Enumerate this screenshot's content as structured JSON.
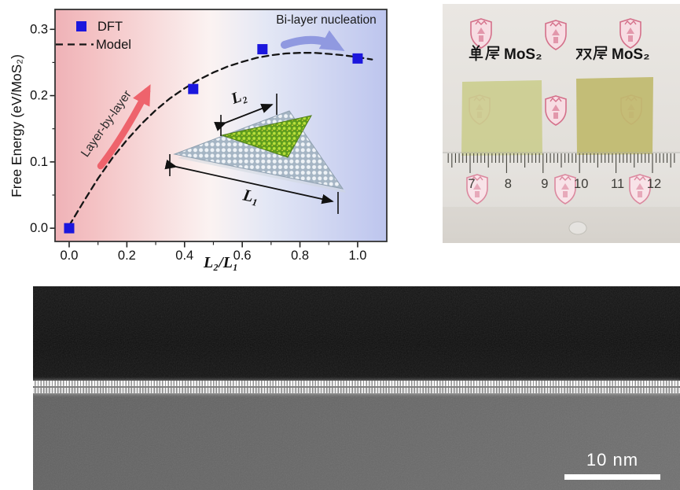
{
  "chart_data": {
    "type": "scatter",
    "title": "",
    "xlabel": "L₂/L₁",
    "ylabel": "Free Energy (eV/MoS₂)",
    "xlim": [
      -0.049,
      1.101
    ],
    "ylim": [
      -0.02,
      0.33
    ],
    "x_ticks": [
      0.0,
      0.2,
      0.4,
      0.6,
      0.8,
      1.0
    ],
    "x_minor_ticks": [
      0.1,
      0.3,
      0.5,
      0.7,
      0.9
    ],
    "y_ticks": [
      0.0,
      0.1,
      0.2,
      0.3
    ],
    "y_minor_ticks": [
      0.05,
      0.15,
      0.25
    ],
    "grid": false,
    "legend_position": "top-left",
    "background_gradient": [
      "#efb2b7",
      "#f4c2c4",
      "#fbf3f2",
      "#e3e7f5",
      "#bdc5ee"
    ],
    "series": [
      {
        "name": "DFT",
        "type": "scatter",
        "marker": "square",
        "color": "#1b16dd",
        "points": [
          [
            0.0,
            0.0
          ],
          [
            0.43,
            0.21
          ],
          [
            0.67,
            0.27
          ],
          [
            1.0,
            0.256
          ]
        ]
      },
      {
        "name": "Model",
        "type": "line",
        "style": "dashed",
        "color": "#151515",
        "points": [
          [
            0.0,
            0.004
          ],
          [
            0.05,
            0.04
          ],
          [
            0.1,
            0.075
          ],
          [
            0.15,
            0.106
          ],
          [
            0.2,
            0.133
          ],
          [
            0.25,
            0.157
          ],
          [
            0.3,
            0.178
          ],
          [
            0.35,
            0.196
          ],
          [
            0.4,
            0.211
          ],
          [
            0.45,
            0.224
          ],
          [
            0.5,
            0.235
          ],
          [
            0.55,
            0.244
          ],
          [
            0.6,
            0.251
          ],
          [
            0.65,
            0.257
          ],
          [
            0.7,
            0.261
          ],
          [
            0.75,
            0.2635
          ],
          [
            0.8,
            0.2645
          ],
          [
            0.85,
            0.2645
          ],
          [
            0.9,
            0.263
          ],
          [
            0.95,
            0.261
          ],
          [
            1.0,
            0.258
          ],
          [
            1.05,
            0.2545
          ]
        ]
      }
    ],
    "annotations": {
      "layer_by_layer": {
        "text": "Layer-by-layer",
        "rotation": -55,
        "arrow_color": "#ee636c",
        "text_color": "#2b2b2b"
      },
      "bilayer_nucleation": {
        "text": "Bi-layer nucleation",
        "arrow_color": "#9099e0",
        "text_color": "#1a1a1a"
      }
    },
    "inset": {
      "dim_top": "L₂",
      "dim_bottom": "L₁"
    }
  },
  "photo": {
    "samples": [
      {
        "label": "单层MoS₂",
        "prefix": "单层",
        "formula": "MoS₂",
        "color": "#cbcd8e"
      },
      {
        "label": "双层MoS₂",
        "prefix": "双层",
        "formula": "MoS₂",
        "color": "#c0ba6e"
      }
    ],
    "ruler": {
      "numbers": [
        "7",
        "8",
        "9",
        "10",
        "11",
        "12"
      ]
    },
    "emblems": [
      [
        49,
        37
      ],
      [
        144,
        39
      ],
      [
        239,
        37
      ],
      [
        47,
        134
      ],
      [
        144,
        135
      ],
      [
        240,
        134
      ],
      [
        44,
        235
      ],
      [
        156,
        235
      ],
      [
        251,
        235
      ]
    ],
    "colors": {
      "paper": "#e8e5e1",
      "emblem": "#d4708a"
    }
  },
  "tem": {
    "scale_bar_label": "10 nm",
    "colors": {
      "top": "#111111",
      "substrate": "#666666",
      "layers": "#ffffff"
    }
  }
}
